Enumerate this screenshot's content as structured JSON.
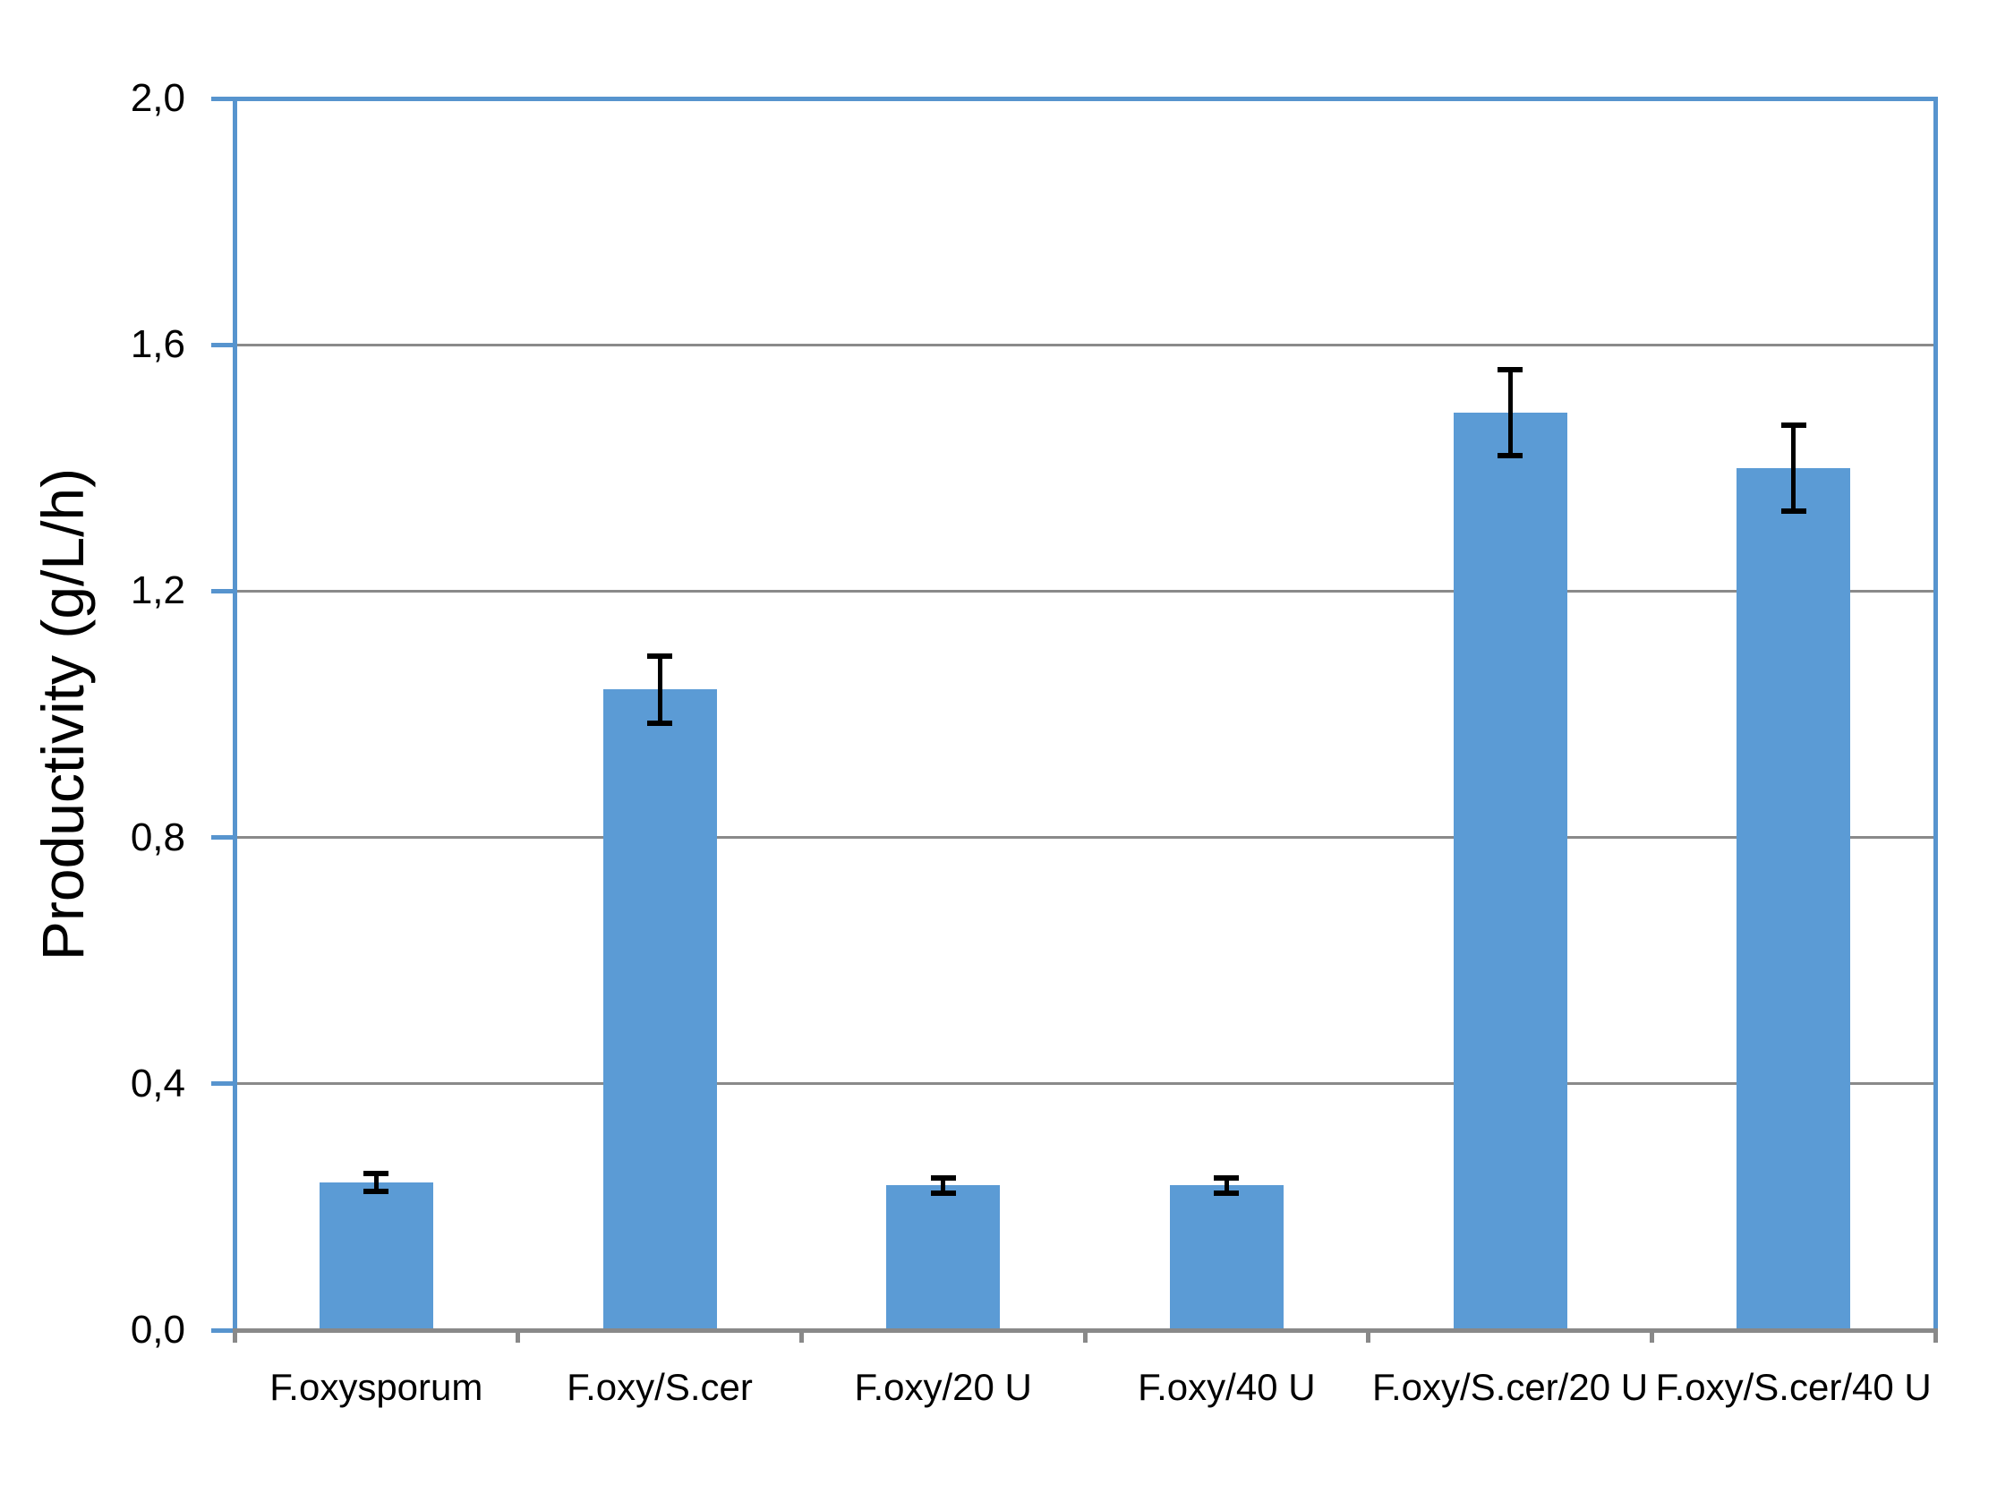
{
  "chart_data": {
    "type": "bar",
    "title": "",
    "ylabel": "Productivity (g/L/h)",
    "xlabel": "",
    "categories": [
      "F.oxysporum",
      "F.oxy/S.cer",
      "F.oxy/20 U",
      "F.oxy/40 U",
      "F.oxy/S.cer/20 U",
      "F.oxy/S.cer/40 U"
    ],
    "values": [
      0.24,
      1.04,
      0.235,
      0.235,
      1.49,
      1.4
    ],
    "error_bars": [
      0.015,
      0.055,
      0.012,
      0.012,
      0.07,
      0.07
    ],
    "ylim": [
      0.0,
      2.0
    ],
    "ytick_interval": 0.4,
    "ytick_labels": [
      "0,0",
      "0,4",
      "0,8",
      "1,2",
      "1,6",
      "2,0"
    ],
    "decimal_style": "comma",
    "grid": true,
    "legend": "none",
    "series_count": 1,
    "colors": {
      "bar_fill": "#5B9BD5",
      "axis_frame": "#5794CE",
      "gridline": "#8A8A8A",
      "x_axis": "#898989",
      "error_bar": "#000000",
      "text": "#000000"
    }
  }
}
